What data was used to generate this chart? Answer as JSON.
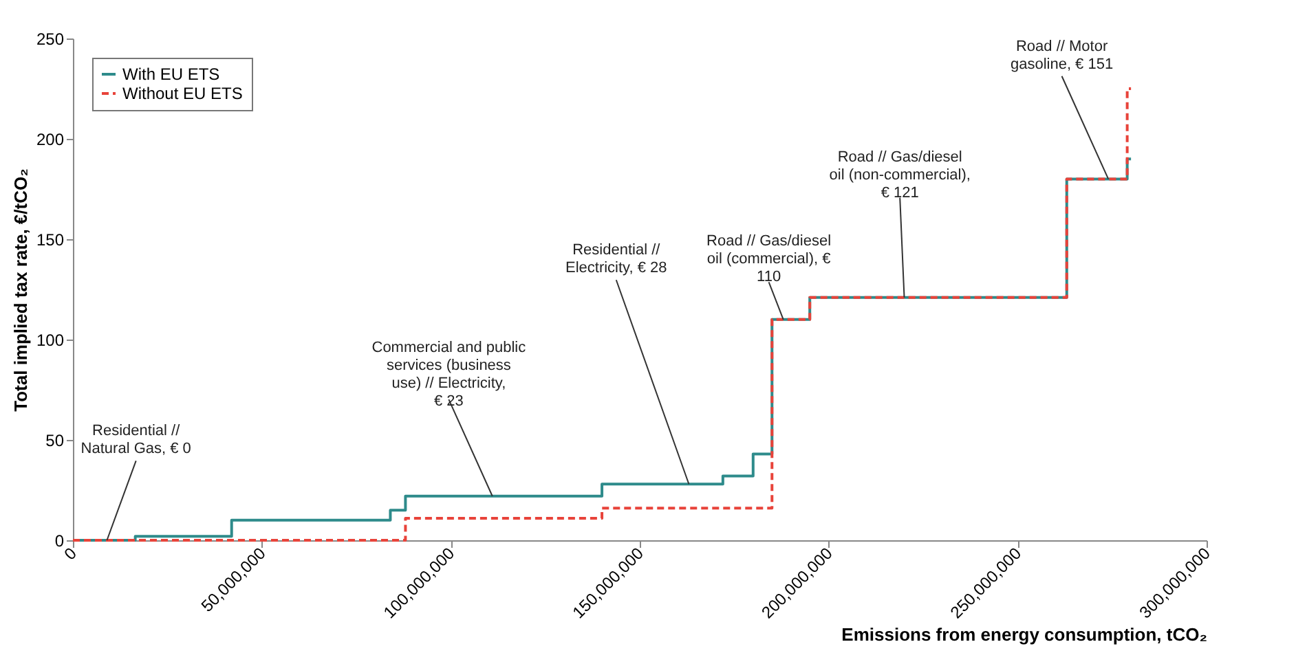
{
  "chart_data": {
    "type": "step",
    "xlabel": "Emissions from energy consumption, tCO₂",
    "ylabel": "Total implied tax rate, €/tCO₂",
    "xlim": [
      0,
      300000000
    ],
    "xticks": [
      0,
      {
        "value": 50000000,
        "label": "50,000,000"
      },
      {
        "value": 100000000,
        "label": "100,000,000"
      },
      {
        "value": 150000000,
        "label": "150,000,000"
      },
      {
        "value": 200000000,
        "label": "200,000,000"
      },
      {
        "value": 250000000,
        "label": "250,000,000"
      },
      {
        "value": 300000000,
        "label": "300,000,000"
      }
    ],
    "ylim": [
      0,
      250
    ],
    "yticks": [
      0,
      50,
      100,
      150,
      200,
      250
    ],
    "grid": false,
    "legend": "top left",
    "marker": "none",
    "series": [
      {
        "name": "With EU ETS",
        "color": "#2e8b8b",
        "line_style": "solid",
        "x": [
          0,
          16500000,
          42000000,
          84000000,
          88000000,
          140000000,
          172000000,
          180000000,
          185000000,
          195000000,
          263000000,
          279000000,
          280000000
        ],
        "values": [
          0,
          2,
          10,
          15,
          22,
          28,
          32,
          43,
          110,
          121,
          180,
          190,
          190
        ]
      },
      {
        "name": "Without EU ETS",
        "color": "#e8433a",
        "line_style": "dashed",
        "x": [
          0,
          88000000,
          140000000,
          185000000,
          195000000,
          263000000,
          279000000,
          280000000
        ],
        "values": [
          0,
          11,
          16,
          110,
          121,
          180,
          225,
          225
        ]
      }
    ],
    "annotations": [
      {
        "text": "Residential // Natural Gas, € 0",
        "x": 9000000,
        "y": 0
      },
      {
        "text": "Commercial and public services (business use) // Electricity, € 23",
        "x": 111000000,
        "y": 22
      },
      {
        "text": "Residential // Electricity, € 28",
        "x": 163000000,
        "y": 28
      },
      {
        "text": "Road // Gas/diesel oil (commercial), € 110",
        "x": 188000000,
        "y": 110
      },
      {
        "text": "Road // Gas/diesel oil (non-commercial), € 121",
        "x": 220000000,
        "y": 121
      },
      {
        "text": "Road // Motor gasoline, € 151",
        "x": 274000000,
        "y": 180
      }
    ]
  }
}
